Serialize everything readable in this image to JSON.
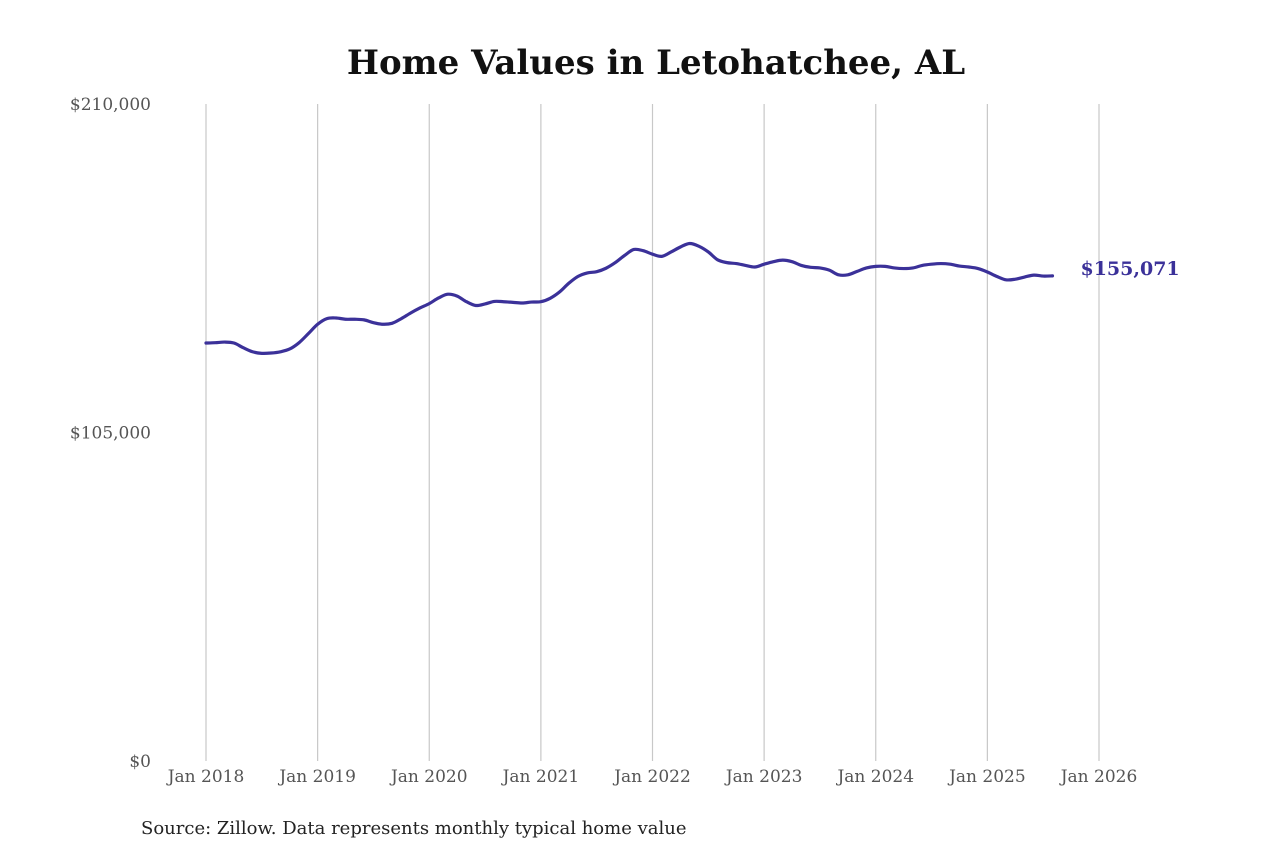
{
  "chart_data": {
    "type": "line",
    "title": "Home Values in Letohatchee, AL",
    "xlabel": "",
    "ylabel": "",
    "ylim": [
      0,
      210000
    ],
    "y_ticks": [
      {
        "value": 210000,
        "label": "$210,000"
      },
      {
        "value": 105000,
        "label": "$105,000"
      },
      {
        "value": 0,
        "label": "$0"
      }
    ],
    "x_ticks": [
      {
        "value": 2018,
        "label": "Jan 2018"
      },
      {
        "value": 2019,
        "label": "Jan 2019"
      },
      {
        "value": 2020,
        "label": "Jan 2020"
      },
      {
        "value": 2021,
        "label": "Jan 2021"
      },
      {
        "value": 2022,
        "label": "Jan 2022"
      },
      {
        "value": 2023,
        "label": "Jan 2023"
      },
      {
        "value": 2024,
        "label": "Jan 2024"
      },
      {
        "value": 2025,
        "label": "Jan 2025"
      },
      {
        "value": 2026,
        "label": "Jan 2026"
      }
    ],
    "x_date_format": "YYYY-MM",
    "grid": "vertical",
    "series": [
      {
        "color": "#3b3199",
        "end_label": "$155,071",
        "points": [
          [
            "2018-01",
            133600
          ],
          [
            "2018-02",
            133700
          ],
          [
            "2018-03",
            133900
          ],
          [
            "2018-04",
            133600
          ],
          [
            "2018-05",
            132100
          ],
          [
            "2018-06",
            130800
          ],
          [
            "2018-07",
            130300
          ],
          [
            "2018-08",
            130400
          ],
          [
            "2018-09",
            130800
          ],
          [
            "2018-10",
            131700
          ],
          [
            "2018-11",
            133700
          ],
          [
            "2018-12",
            136600
          ],
          [
            "2019-01",
            139600
          ],
          [
            "2019-02",
            141400
          ],
          [
            "2019-03",
            141600
          ],
          [
            "2019-04",
            141200
          ],
          [
            "2019-05",
            141200
          ],
          [
            "2019-06",
            141000
          ],
          [
            "2019-07",
            140100
          ],
          [
            "2019-08",
            139600
          ],
          [
            "2019-09",
            139900
          ],
          [
            "2019-10",
            141400
          ],
          [
            "2019-11",
            143200
          ],
          [
            "2019-12",
            144800
          ],
          [
            "2020-01",
            146200
          ],
          [
            "2020-02",
            148000
          ],
          [
            "2020-03",
            149200
          ],
          [
            "2020-04",
            148600
          ],
          [
            "2020-05",
            146800
          ],
          [
            "2020-06",
            145600
          ],
          [
            "2020-07",
            146100
          ],
          [
            "2020-08",
            146900
          ],
          [
            "2020-09",
            146800
          ],
          [
            "2020-10",
            146600
          ],
          [
            "2020-11",
            146400
          ],
          [
            "2020-12",
            146700
          ],
          [
            "2021-01",
            146800
          ],
          [
            "2021-02",
            147900
          ],
          [
            "2021-03",
            149900
          ],
          [
            "2021-04",
            152700
          ],
          [
            "2021-05",
            154900
          ],
          [
            "2021-06",
            156000
          ],
          [
            "2021-07",
            156400
          ],
          [
            "2021-08",
            157500
          ],
          [
            "2021-09",
            159300
          ],
          [
            "2021-10",
            161600
          ],
          [
            "2021-11",
            163500
          ],
          [
            "2021-12",
            163100
          ],
          [
            "2022-01",
            162000
          ],
          [
            "2022-02",
            161300
          ],
          [
            "2022-03",
            162700
          ],
          [
            "2022-04",
            164300
          ],
          [
            "2022-05",
            165400
          ],
          [
            "2022-06",
            164500
          ],
          [
            "2022-07",
            162700
          ],
          [
            "2022-08",
            160200
          ],
          [
            "2022-09",
            159300
          ],
          [
            "2022-10",
            159000
          ],
          [
            "2022-11",
            158400
          ],
          [
            "2022-12",
            157900
          ],
          [
            "2023-01",
            158800
          ],
          [
            "2023-02",
            159600
          ],
          [
            "2023-03",
            160100
          ],
          [
            "2023-04",
            159600
          ],
          [
            "2023-05",
            158400
          ],
          [
            "2023-06",
            157800
          ],
          [
            "2023-07",
            157600
          ],
          [
            "2023-08",
            156900
          ],
          [
            "2023-09",
            155400
          ],
          [
            "2023-10",
            155400
          ],
          [
            "2023-11",
            156500
          ],
          [
            "2023-12",
            157600
          ],
          [
            "2024-01",
            158100
          ],
          [
            "2024-02",
            158100
          ],
          [
            "2024-03",
            157600
          ],
          [
            "2024-04",
            157400
          ],
          [
            "2024-05",
            157600
          ],
          [
            "2024-06",
            158400
          ],
          [
            "2024-07",
            158800
          ],
          [
            "2024-08",
            159000
          ],
          [
            "2024-09",
            158800
          ],
          [
            "2024-10",
            158200
          ],
          [
            "2024-11",
            157900
          ],
          [
            "2024-12",
            157400
          ],
          [
            "2025-01",
            156300
          ],
          [
            "2025-02",
            154900
          ],
          [
            "2025-03",
            153800
          ],
          [
            "2025-04",
            154000
          ],
          [
            "2025-05",
            154700
          ],
          [
            "2025-06",
            155300
          ],
          [
            "2025-07",
            155000
          ],
          [
            "2025-08",
            155071
          ]
        ]
      }
    ]
  },
  "source": "Source: Zillow. Data represents monthly typical home value"
}
